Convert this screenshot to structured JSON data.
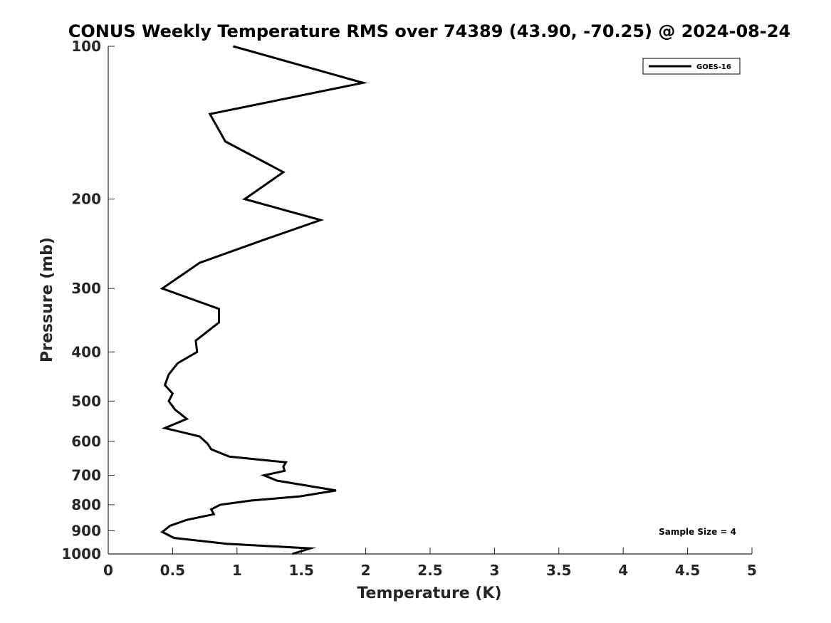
{
  "chart_data": {
    "type": "line",
    "title": "CONUS Weekly Temperature RMS over 74389 (43.90, -70.25) @ 2024-08-24",
    "xlabel": "Temperature (K)",
    "ylabel": "Pressure (mb)",
    "xlim": [
      0,
      5
    ],
    "ylim": [
      100,
      1000
    ],
    "yscale": "log",
    "yreversed": true,
    "xticks": [
      0,
      0.5,
      1,
      1.5,
      2,
      2.5,
      3,
      3.5,
      4,
      4.5,
      5
    ],
    "xtick_labels": [
      "0",
      "0.5",
      "1",
      "1.5",
      "2",
      "2.5",
      "3",
      "3.5",
      "4",
      "4.5",
      "5"
    ],
    "yticks": [
      100,
      200,
      300,
      400,
      500,
      600,
      700,
      800,
      900,
      1000
    ],
    "ytick_labels": [
      "100",
      "200",
      "300",
      "400",
      "500",
      "600",
      "700",
      "800",
      "900",
      "1000"
    ],
    "grid": false,
    "legend_position": "top-right",
    "annotation": "Sample Size = 4",
    "series": [
      {
        "name": "GOES-16",
        "color": "#000000",
        "x": [
          0.97,
          1.98,
          0.79,
          0.91,
          1.36,
          1.06,
          1.65,
          1.22,
          0.71,
          0.42,
          0.86,
          0.86,
          0.68,
          0.69,
          0.54,
          0.47,
          0.44,
          0.5,
          0.47,
          0.52,
          0.61,
          0.44,
          0.71,
          0.77,
          0.8,
          0.94,
          1.38,
          1.36,
          1.37,
          1.21,
          1.31,
          1.77,
          1.49,
          1.11,
          0.87,
          0.8,
          0.82,
          0.61,
          0.48,
          0.42,
          0.51,
          0.92,
          1.57,
          1.43
        ],
        "y": [
          100,
          118,
          136,
          154,
          177,
          200,
          220,
          240,
          267,
          300,
          329,
          350,
          380,
          400,
          421,
          443,
          465,
          483,
          500,
          520,
          542,
          565,
          587,
          606,
          622,
          643,
          660,
          673,
          686,
          700,
          717,
          750,
          770,
          785,
          800,
          817,
          835,
          857,
          880,
          905,
          930,
          955,
          975,
          1000
        ]
      }
    ]
  }
}
